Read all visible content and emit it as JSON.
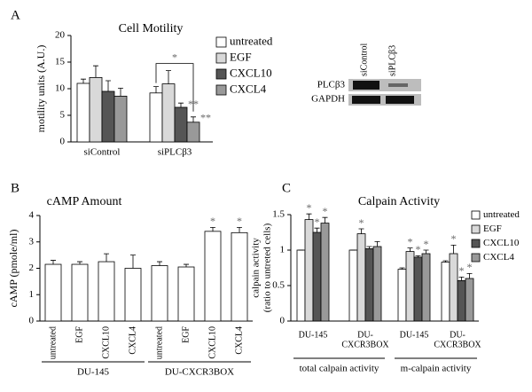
{
  "chart_data": [
    {
      "type": "bar",
      "panel": "A",
      "title": "Cell Motility",
      "ylabel": "motility units (A.U.)",
      "categories": [
        "siControl",
        "siPLCβ3"
      ],
      "series": [
        {
          "name": "untreated",
          "color": "#ffffff",
          "values": [
            11,
            9.2
          ],
          "errors": [
            0.8,
            1.2
          ]
        },
        {
          "name": "EGF",
          "color": "#d9d9d9",
          "values": [
            12.1,
            10.9
          ],
          "errors": [
            2.2,
            2.5
          ]
        },
        {
          "name": "CXCL10",
          "color": "#555555",
          "values": [
            9.5,
            6.5
          ],
          "errors": [
            2,
            0.8
          ]
        },
        {
          "name": "CXCL4",
          "color": "#999999",
          "values": [
            8.6,
            3.7
          ],
          "errors": [
            1.5,
            1
          ]
        }
      ],
      "ylim": [
        0,
        20
      ],
      "yticks": [
        0,
        5,
        10,
        15,
        20
      ],
      "annotations": [
        {
          "text": "**",
          "series": 2,
          "index": 1
        },
        {
          "text": "**",
          "series": 3,
          "index": 1
        }
      ],
      "bracket": {
        "text": "*",
        "index": 1,
        "series": [
          0,
          3
        ]
      },
      "blot": {
        "lanes": [
          "siControl",
          "siPLCβ3"
        ],
        "rows": [
          "PLCβ3",
          "GAPDH"
        ]
      }
    },
    {
      "type": "bar",
      "panel": "B",
      "title": "cAMP Amount",
      "ylabel": "cAMP (pmole/ml)",
      "categories": [
        "untreated",
        "EGF",
        "CXCL10",
        "CXCL4",
        "untreated",
        "EGF",
        "CXCL10",
        "CXCL4"
      ],
      "values": [
        2.15,
        2.15,
        2.25,
        2.0,
        2.1,
        2.05,
        3.4,
        3.35
      ],
      "errors": [
        0.15,
        0.1,
        0.3,
        0.5,
        0.15,
        0.1,
        0.15,
        0.2
      ],
      "color": "#ffffff",
      "ylim": [
        0,
        4
      ],
      "yticks": [
        0,
        1,
        2,
        3,
        4
      ],
      "groups": [
        {
          "label": "DU-145",
          "from": 0,
          "to": 3
        },
        {
          "label": "DU-CXCR3BOX",
          "from": 4,
          "to": 7
        }
      ],
      "annotations": [
        {
          "text": "*",
          "index": 6
        },
        {
          "text": "*",
          "index": 7
        }
      ]
    },
    {
      "type": "bar",
      "panel": "C",
      "title": "Calpain Activity",
      "ylabel": [
        "calpain activity",
        "(ratio to untreted cells)"
      ],
      "categories": [
        [
          "DU-145"
        ],
        [
          "DU-",
          "CXCR3BOX"
        ],
        [
          "DU-145"
        ],
        [
          "DU-",
          "CXCR3BOX"
        ]
      ],
      "series": [
        {
          "name": "untreated",
          "color": "#ffffff",
          "values": [
            1,
            1,
            0.73,
            0.83
          ],
          "errors": [
            0,
            0,
            0.02,
            0.02
          ]
        },
        {
          "name": "EGF",
          "color": "#d9d9d9",
          "values": [
            1.43,
            1.23,
            0.98,
            0.95
          ],
          "errors": [
            0.08,
            0.07,
            0.05,
            0.12
          ]
        },
        {
          "name": "CXCL10",
          "color": "#555555",
          "values": [
            1.25,
            1.02,
            0.9,
            0.57
          ],
          "errors": [
            0.06,
            0.03,
            0.02,
            0.05
          ]
        },
        {
          "name": "CXCL4",
          "color": "#999999",
          "values": [
            1.38,
            1.05,
            0.95,
            0.6
          ],
          "errors": [
            0.08,
            0.07,
            0.05,
            0.07
          ]
        }
      ],
      "ylim": [
        0,
        1.5
      ],
      "yticks": [
        0,
        0.5,
        1,
        1.5
      ],
      "groups": [
        {
          "label": "total calpain activity",
          "from": 0,
          "to": 1
        },
        {
          "label": "m-calpain activity",
          "from": 2,
          "to": 3
        }
      ],
      "annotations": [
        {
          "text": "*",
          "series": 1,
          "index": 0
        },
        {
          "text": "*",
          "series": 2,
          "index": 0
        },
        {
          "text": "*",
          "series": 3,
          "index": 0
        },
        {
          "text": "*",
          "series": 1,
          "index": 1
        },
        {
          "text": "*",
          "series": 1,
          "index": 2
        },
        {
          "text": "*",
          "series": 2,
          "index": 2
        },
        {
          "text": "*",
          "series": 3,
          "index": 2
        },
        {
          "text": "*",
          "series": 1,
          "index": 3
        },
        {
          "text": "*",
          "series": 2,
          "index": 3
        },
        {
          "text": "*",
          "series": 3,
          "index": 3
        }
      ]
    }
  ]
}
